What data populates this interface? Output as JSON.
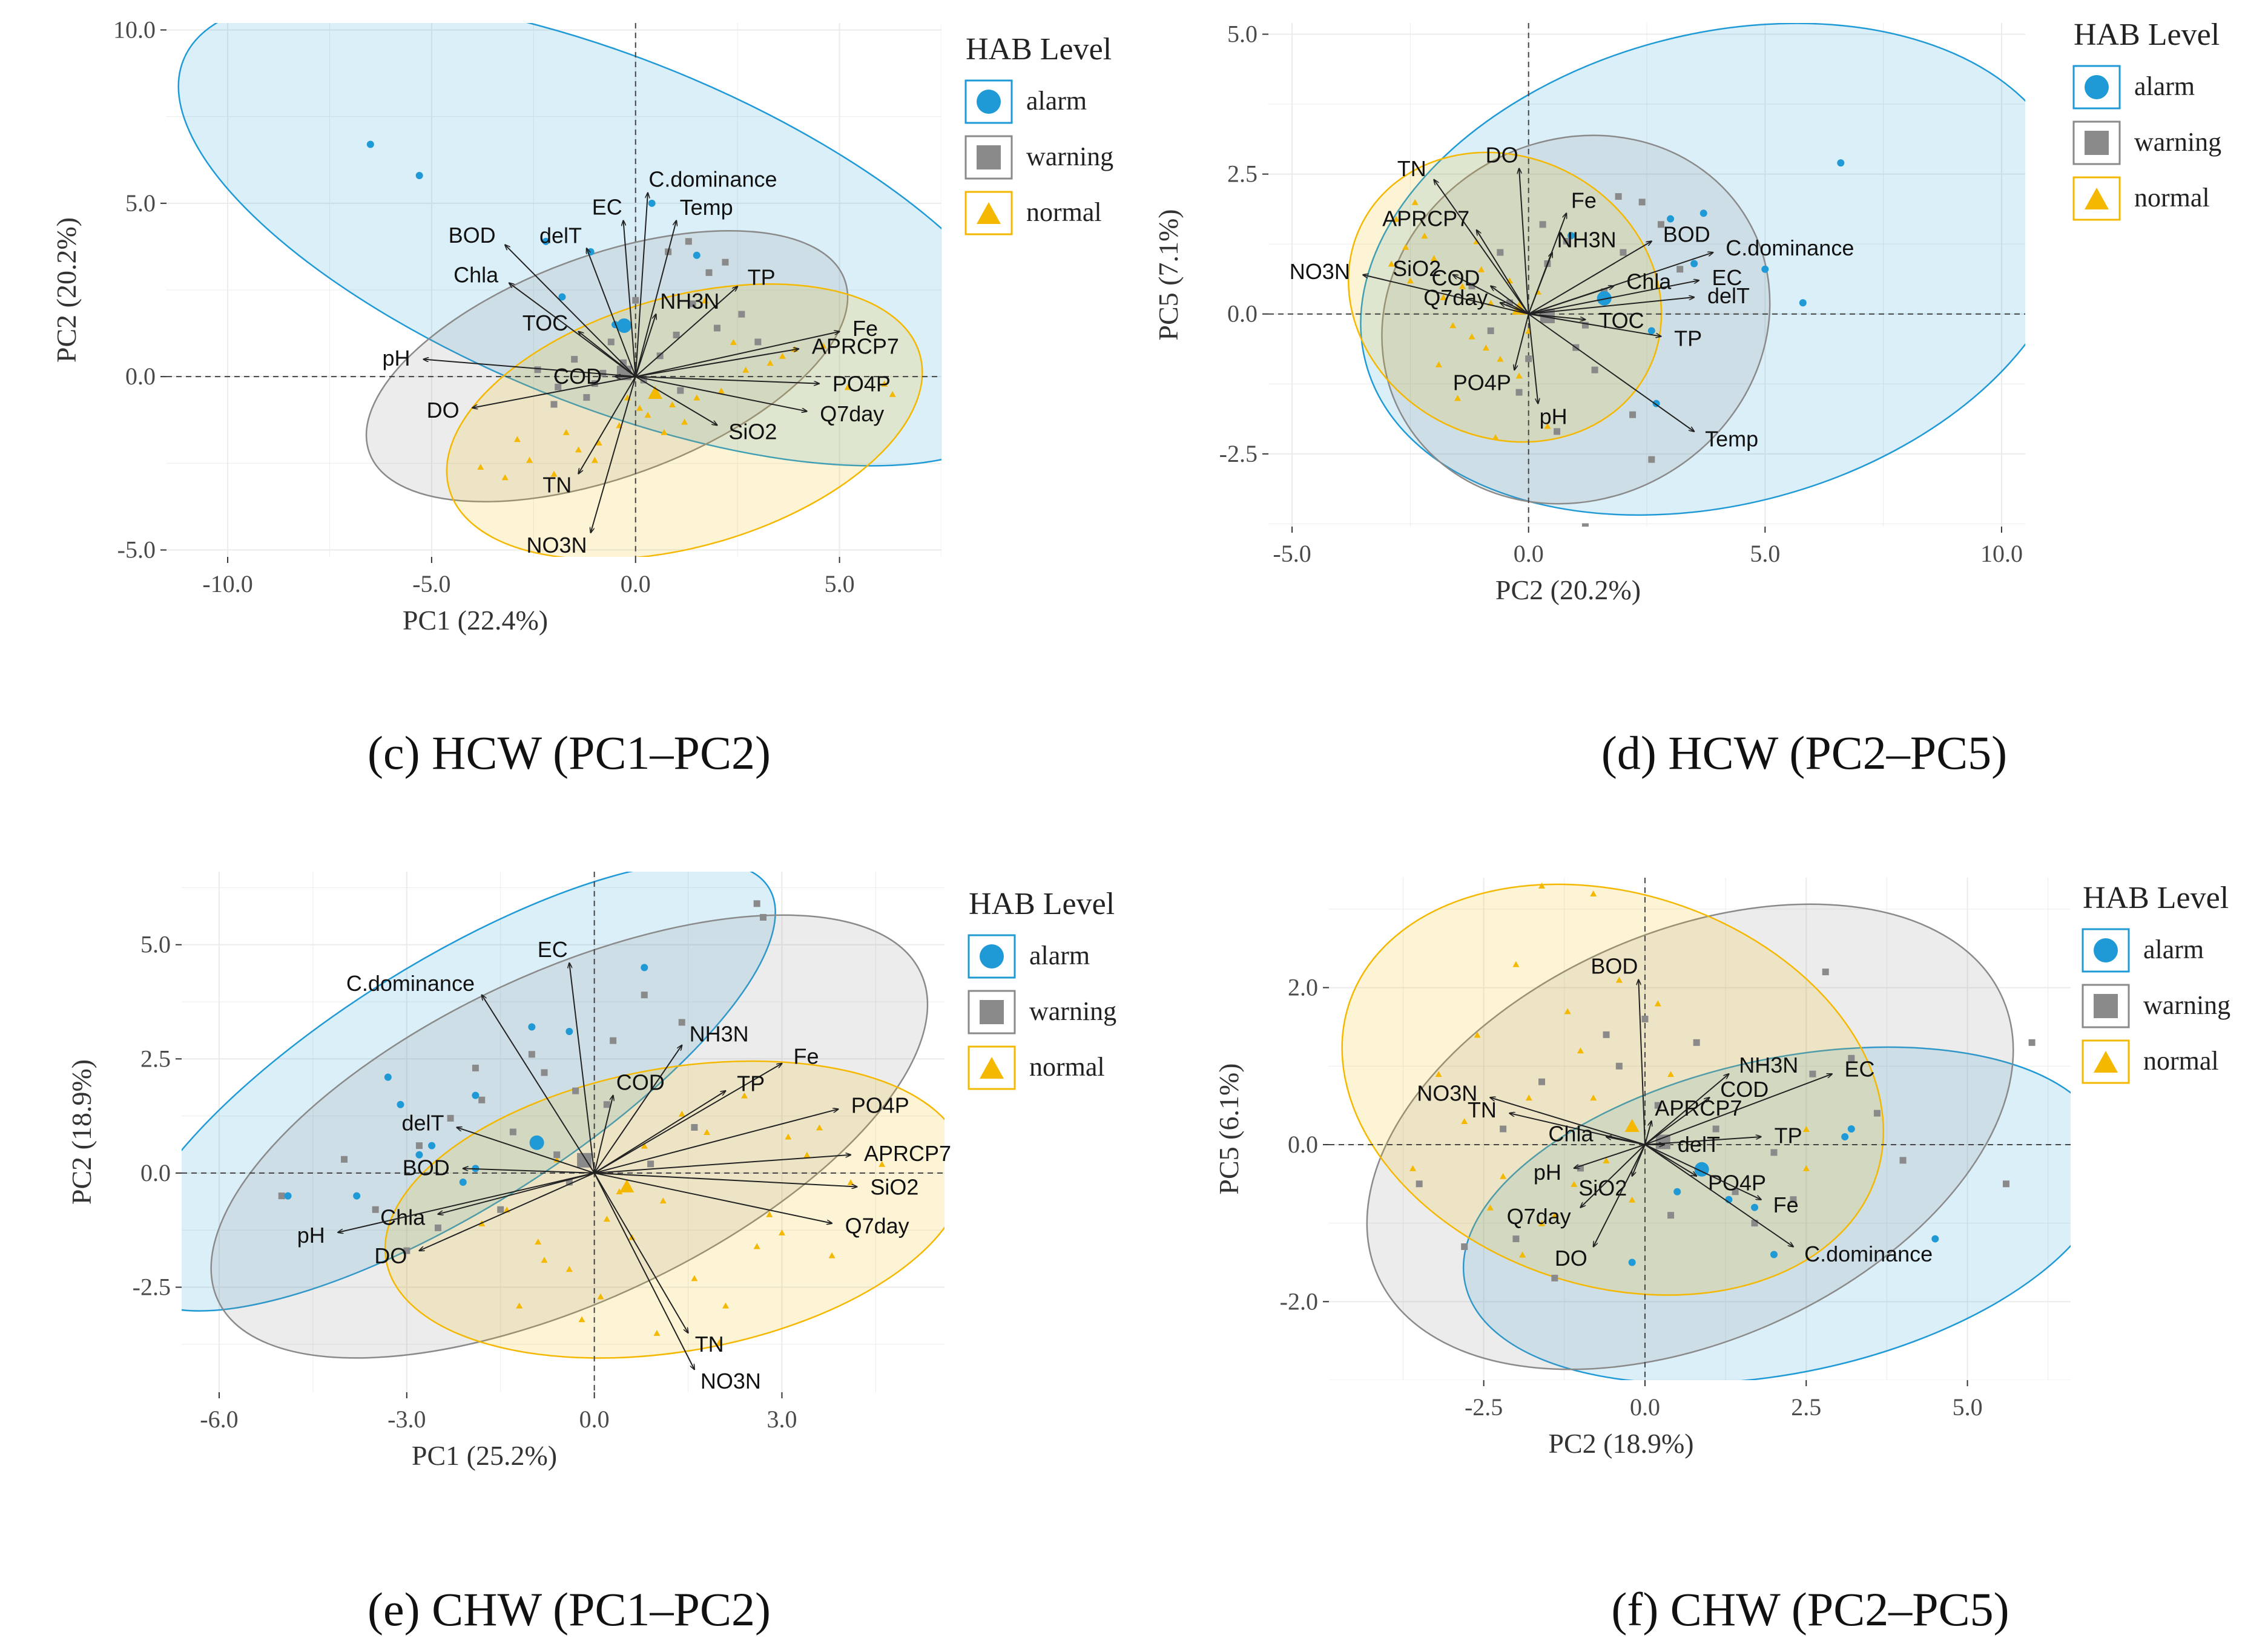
{
  "legend": {
    "title": "HAB Level",
    "items": [
      {
        "label": "alarm",
        "shape": "circle",
        "color": "#1f9ad6"
      },
      {
        "label": "warning",
        "shape": "square",
        "color": "#8a8a8a"
      },
      {
        "label": "normal",
        "shape": "triangle",
        "color": "#f5b800"
      }
    ]
  },
  "colors": {
    "alarm": "#1f9ad6",
    "warning": "#8a8a8a",
    "normal": "#f5b800"
  },
  "chart_data": [
    {
      "type": "scatter",
      "caption": "(c) HCW (PC1–PC2)",
      "xlabel": "PC1 (22.4%)",
      "ylabel": "PC2 (20.2%)",
      "xlim": [
        -11.5,
        7.5
      ],
      "ylim": [
        -5.2,
        10.2
      ],
      "xticks": [
        -10,
        -5,
        0,
        5
      ],
      "yticks": [
        -5,
        0,
        5,
        10
      ],
      "xtick_labels": [
        "-10.0",
        "-5.0",
        "0.0",
        "5.0"
      ],
      "ytick_labels": [
        "-5.0",
        "0.0",
        "5.0",
        "10.0"
      ],
      "ellipses": [
        {
          "group": "alarm",
          "cx": -0.7,
          "cy": 4.2,
          "rx": 11.2,
          "ry": 5.0,
          "angle": -22
        },
        {
          "group": "warning",
          "cx": -0.7,
          "cy": 0.3,
          "rx": 6.2,
          "ry": 3.2,
          "angle": 20
        },
        {
          "group": "normal",
          "cx": 1.2,
          "cy": -1.3,
          "rx": 6.0,
          "ry": 3.6,
          "angle": 16
        }
      ],
      "vectors": [
        {
          "label": "C.dominance",
          "x": 0.3,
          "y": 5.3
        },
        {
          "label": "EC",
          "x": -0.3,
          "y": 4.5
        },
        {
          "label": "Temp",
          "x": 1.0,
          "y": 4.5
        },
        {
          "label": "delT",
          "x": -1.2,
          "y": 3.7
        },
        {
          "label": "BOD",
          "x": -3.2,
          "y": 3.8
        },
        {
          "label": "Chla",
          "x": -3.1,
          "y": 2.7
        },
        {
          "label": "TOC",
          "x": -1.4,
          "y": 1.3
        },
        {
          "label": "TP",
          "x": 2.5,
          "y": 2.6
        },
        {
          "label": "NH3N",
          "x": 0.5,
          "y": 1.8
        },
        {
          "label": "APRCP7",
          "x": 4.0,
          "y": 0.8
        },
        {
          "label": "Fe",
          "x": 5.0,
          "y": 1.3
        },
        {
          "label": "pH",
          "x": -5.2,
          "y": 0.5
        },
        {
          "label": "COD",
          "x": -0.5,
          "y": 0.0
        },
        {
          "label": "PO4P",
          "x": 4.5,
          "y": -0.2
        },
        {
          "label": "SiO2",
          "x": 2.0,
          "y": -1.4
        },
        {
          "label": "Q7day",
          "x": 4.2,
          "y": -1.0
        },
        {
          "label": "DO",
          "x": -4.0,
          "y": -0.9
        },
        {
          "label": "TN",
          "x": -1.4,
          "y": -2.8
        },
        {
          "label": "NO3N",
          "x": -1.1,
          "y": -4.5
        }
      ],
      "alarm": {
        "x": [
          -6.5,
          -5.3,
          -2.2,
          -1.1,
          0.4,
          1.5,
          -1.8,
          -0.5
        ],
        "y": [
          6.7,
          5.8,
          3.9,
          3.6,
          5.0,
          3.5,
          2.3,
          1.5
        ]
      },
      "warning": {
        "x": [
          -2.4,
          -1.9,
          -1.5,
          -1.0,
          -0.6,
          -0.3,
          0.2,
          0.6,
          1.0,
          1.4,
          1.8,
          2.2,
          2.6,
          -2.0,
          -1.2,
          0.0,
          0.8,
          1.3,
          2.0,
          -0.8,
          3.0,
          1.1
        ],
        "y": [
          0.2,
          -0.3,
          0.5,
          -0.2,
          1.0,
          0.4,
          -0.1,
          0.6,
          1.2,
          2.1,
          3.0,
          3.3,
          1.8,
          -0.8,
          -0.6,
          2.2,
          3.6,
          3.9,
          1.4,
          0.1,
          1.0,
          -0.4
        ]
      },
      "normal": {
        "x": [
          -3.8,
          -3.2,
          -2.6,
          -2.0,
          -1.4,
          -0.9,
          -0.4,
          0.3,
          0.9,
          1.5,
          2.1,
          2.7,
          3.3,
          3.9,
          4.6,
          5.2,
          6.1,
          6.3,
          -1.7,
          0.1,
          1.2,
          2.4,
          -2.9,
          -0.2,
          1.7,
          3.6,
          0.7,
          -1.0
        ],
        "y": [
          -2.6,
          -2.9,
          -2.4,
          -2.8,
          -2.1,
          -1.9,
          -1.4,
          -1.1,
          -0.8,
          -0.6,
          -0.4,
          0.2,
          0.4,
          0.8,
          0.9,
          -0.3,
          -0.2,
          -0.5,
          -1.6,
          -0.9,
          -1.3,
          1.0,
          -1.8,
          -0.6,
          2.2,
          0.6,
          -1.6,
          -2.4
        ]
      }
    },
    {
      "type": "scatter",
      "caption": "(d) HCW (PC2–PC5)",
      "xlabel": "PC2 (20.2%)",
      "ylabel": "PC5 (7.1%)",
      "xlim": [
        -5.5,
        10.5
      ],
      "ylim": [
        -3.8,
        5.2
      ],
      "xticks": [
        -5,
        0,
        5,
        10
      ],
      "yticks": [
        -2.5,
        0,
        2.5,
        5
      ],
      "xtick_labels": [
        "-5.0",
        "0.0",
        "5.0",
        "10.0"
      ],
      "ytick_labels": [
        "-2.5",
        "0.0",
        "2.5",
        "5.0"
      ],
      "ellipses": [
        {
          "group": "alarm",
          "cx": 4.0,
          "cy": 0.8,
          "rx": 7.7,
          "ry": 4.2,
          "angle": 15
        },
        {
          "group": "warning",
          "cx": 1.0,
          "cy": -0.1,
          "rx": 4.2,
          "ry": 3.2,
          "angle": 30
        },
        {
          "group": "normal",
          "cx": -0.5,
          "cy": 0.3,
          "rx": 3.4,
          "ry": 2.5,
          "angle": -28
        }
      ],
      "vectors": [
        {
          "label": "TN",
          "x": -2.0,
          "y": 2.4
        },
        {
          "label": "DO",
          "x": -0.2,
          "y": 2.6
        },
        {
          "label": "Fe",
          "x": 0.8,
          "y": 1.8
        },
        {
          "label": "BOD",
          "x": 2.6,
          "y": 1.3
        },
        {
          "label": "C.dominance",
          "x": 3.9,
          "y": 1.1
        },
        {
          "label": "APRCP7",
          "x": -1.1,
          "y": 1.5
        },
        {
          "label": "NH3N",
          "x": 0.5,
          "y": 1.1
        },
        {
          "label": "EC",
          "x": 3.6,
          "y": 0.6
        },
        {
          "label": "NO3N",
          "x": -3.5,
          "y": 0.7
        },
        {
          "label": "SiO2",
          "x": -1.6,
          "y": 0.7
        },
        {
          "label": "COD",
          "x": -0.8,
          "y": 0.5
        },
        {
          "label": "Chla",
          "x": 1.8,
          "y": 0.5
        },
        {
          "label": "Q7day",
          "x": -0.6,
          "y": 0.2
        },
        {
          "label": "delT",
          "x": 3.5,
          "y": 0.3
        },
        {
          "label": "TOC",
          "x": 1.2,
          "y": -0.1
        },
        {
          "label": "TP",
          "x": 2.8,
          "y": -0.4
        },
        {
          "label": "PO4P",
          "x": -0.3,
          "y": -1.0
        },
        {
          "label": "pH",
          "x": 0.2,
          "y": -1.6
        },
        {
          "label": "Temp",
          "x": 3.5,
          "y": -2.1
        }
      ],
      "alarm": {
        "x": [
          6.6,
          5.0,
          5.8,
          3.7,
          3.5,
          3.0,
          0.9,
          2.6,
          2.7
        ],
        "y": [
          2.7,
          0.8,
          0.2,
          1.8,
          0.9,
          1.7,
          1.4,
          -0.3,
          -1.6
        ]
      },
      "warning": {
        "x": [
          -1.2,
          -0.8,
          -0.4,
          0.0,
          0.4,
          0.8,
          1.2,
          1.6,
          2.0,
          2.4,
          2.8,
          3.2,
          -0.2,
          0.6,
          1.4,
          2.2,
          1.9,
          1.2,
          0.3,
          2.6,
          -0.6,
          1.0
        ],
        "y": [
          0.5,
          -0.3,
          0.2,
          -0.8,
          0.9,
          1.3,
          -0.2,
          0.4,
          1.1,
          2.0,
          1.6,
          0.8,
          -1.4,
          -2.1,
          -1.0,
          -1.8,
          2.1,
          -3.8,
          1.6,
          -2.6,
          1.1,
          -0.6
        ]
      },
      "normal": {
        "x": [
          -2.8,
          -2.6,
          -2.4,
          -2.2,
          -2.0,
          -1.8,
          -1.6,
          -1.4,
          -1.2,
          -1.0,
          -0.8,
          -0.6,
          -0.4,
          -0.2,
          0.0,
          0.4,
          -2.5,
          -1.5,
          -0.7,
          0.2,
          -1.1,
          -2.9,
          -0.9,
          -1.9
        ],
        "y": [
          1.7,
          1.2,
          2.0,
          1.4,
          1.0,
          0.3,
          -0.2,
          0.5,
          -0.4,
          0.8,
          0.2,
          -0.8,
          0.6,
          -1.1,
          -0.3,
          -2.0,
          0.6,
          -1.5,
          -2.2,
          0.4,
          1.3,
          0.9,
          -0.6,
          -0.9
        ]
      }
    },
    {
      "type": "scatter",
      "caption": "(e) CHW (PC1–PC2)",
      "xlabel": "PC1 (25.2%)",
      "ylabel": "PC2 (18.9%)",
      "xlim": [
        -6.6,
        5.6
      ],
      "ylim": [
        -4.8,
        6.6
      ],
      "xticks": [
        -6,
        -3,
        0,
        3
      ],
      "yticks": [
        -2.5,
        0,
        2.5,
        5
      ],
      "xtick_labels": [
        "-6.0",
        "-3.0",
        "0.0",
        "3.0"
      ],
      "ytick_labels": [
        "-2.5",
        "0.0",
        "2.5",
        "5.0"
      ],
      "ellipses": [
        {
          "group": "alarm",
          "cx": -2.3,
          "cy": 1.9,
          "rx": 6.0,
          "ry": 2.7,
          "angle": 32
        },
        {
          "group": "warning",
          "cx": -0.4,
          "cy": 0.8,
          "rx": 6.2,
          "ry": 3.6,
          "angle": 25
        },
        {
          "group": "normal",
          "cx": 1.3,
          "cy": -0.8,
          "rx": 4.7,
          "ry": 3.1,
          "angle": 10
        }
      ],
      "vectors": [
        {
          "label": "EC",
          "x": -0.4,
          "y": 4.6
        },
        {
          "label": "C.dominance",
          "x": -1.8,
          "y": 3.9
        },
        {
          "label": "NH3N",
          "x": 1.4,
          "y": 2.8
        },
        {
          "label": "Fe",
          "x": 3.0,
          "y": 2.4
        },
        {
          "label": "COD",
          "x": 0.3,
          "y": 1.7
        },
        {
          "label": "TP",
          "x": 2.1,
          "y": 1.8
        },
        {
          "label": "PO4P",
          "x": 3.9,
          "y": 1.4
        },
        {
          "label": "delT",
          "x": -2.2,
          "y": 1.0
        },
        {
          "label": "APRCP7",
          "x": 4.1,
          "y": 0.4
        },
        {
          "label": "BOD",
          "x": -2.1,
          "y": 0.1
        },
        {
          "label": "SiO2",
          "x": 4.2,
          "y": -0.3
        },
        {
          "label": "Chla",
          "x": -2.5,
          "y": -0.9
        },
        {
          "label": "pH",
          "x": -4.1,
          "y": -1.3
        },
        {
          "label": "DO",
          "x": -2.8,
          "y": -1.7
        },
        {
          "label": "Q7day",
          "x": 3.8,
          "y": -1.1
        },
        {
          "label": "TN",
          "x": 1.5,
          "y": -3.5
        },
        {
          "label": "NO3N",
          "x": 1.6,
          "y": -4.3
        }
      ],
      "alarm": {
        "x": [
          0.8,
          -0.4,
          -1.0,
          -1.9,
          -3.1,
          -3.3,
          -2.6,
          -2.8,
          -1.9,
          -2.1,
          -3.8,
          -4.9
        ],
        "y": [
          4.5,
          3.1,
          3.2,
          1.7,
          1.5,
          2.1,
          0.6,
          0.4,
          0.1,
          -0.2,
          -0.5,
          -0.5
        ]
      },
      "warning": {
        "x": [
          -4.0,
          -3.5,
          -2.8,
          -2.3,
          -1.8,
          -1.3,
          -0.8,
          -0.3,
          0.3,
          0.8,
          1.4,
          -0.6,
          -1.5,
          -2.5,
          0.9,
          2.6,
          2.7,
          0.2,
          -1.0,
          -3.0,
          -5.0,
          -1.9,
          -0.4,
          1.6
        ],
        "y": [
          0.3,
          -0.8,
          0.6,
          1.2,
          1.6,
          0.9,
          2.2,
          1.8,
          2.9,
          3.9,
          3.3,
          0.4,
          -0.8,
          -1.2,
          0.2,
          5.9,
          5.6,
          1.5,
          2.6,
          -1.7,
          -0.5,
          2.3,
          -0.2,
          1.0
        ]
      },
      "normal": {
        "x": [
          -1.4,
          -0.9,
          -0.4,
          0.1,
          0.6,
          1.1,
          1.6,
          2.1,
          2.6,
          3.1,
          3.6,
          4.1,
          4.6,
          -1.2,
          -0.2,
          0.8,
          1.8,
          2.8,
          3.8,
          -0.6,
          0.4,
          1.4,
          2.4,
          3.4,
          -1.8,
          1.0,
          2.0,
          3.0,
          0.2,
          -0.8
        ],
        "y": [
          -0.8,
          -1.5,
          -2.1,
          -2.7,
          -1.4,
          -0.6,
          -2.3,
          -2.9,
          -1.6,
          0.8,
          1.0,
          -0.2,
          0.2,
          -2.9,
          -3.2,
          0.6,
          0.9,
          -0.9,
          -1.8,
          0.3,
          -0.4,
          1.3,
          1.7,
          0.4,
          -1.1,
          -3.5,
          -3.7,
          -1.3,
          -1.0,
          -1.9
        ]
      }
    },
    {
      "type": "scatter",
      "caption": "(f) CHW (PC2–PC5)",
      "xlabel": "PC2 (18.9%)",
      "ylabel": "PC5 (6.1%)",
      "xlim": [
        -4.9,
        6.6
      ],
      "ylim": [
        -3.0,
        3.4
      ],
      "xticks": [
        -2.5,
        0,
        2.5,
        5
      ],
      "yticks": [
        -2,
        0,
        2
      ],
      "xtick_labels": [
        "-2.5",
        "0.0",
        "2.5",
        "5.0"
      ],
      "ytick_labels": [
        "-2.0",
        "0.0",
        "2.0"
      ],
      "ellipses": [
        {
          "group": "alarm",
          "cx": 2.2,
          "cy": -0.9,
          "rx": 5.1,
          "ry": 2.0,
          "angle": 12
        },
        {
          "group": "warning",
          "cx": 0.7,
          "cy": 0.1,
          "rx": 5.3,
          "ry": 2.6,
          "angle": 24
        },
        {
          "group": "normal",
          "cx": -0.5,
          "cy": 0.7,
          "rx": 4.3,
          "ry": 2.5,
          "angle": -18
        }
      ],
      "vectors": [
        {
          "label": "BOD",
          "x": -0.1,
          "y": 2.1
        },
        {
          "label": "NH3N",
          "x": 1.3,
          "y": 0.9
        },
        {
          "label": "COD",
          "x": 1.0,
          "y": 0.6
        },
        {
          "label": "EC",
          "x": 2.9,
          "y": 0.9
        },
        {
          "label": "NO3N",
          "x": -2.4,
          "y": 0.6
        },
        {
          "label": "APRCP7",
          "x": 0.1,
          "y": 0.3
        },
        {
          "label": "TN",
          "x": -2.1,
          "y": 0.4
        },
        {
          "label": "TP",
          "x": 1.8,
          "y": 0.1
        },
        {
          "label": "delT",
          "x": 0.3,
          "y": 0.0
        },
        {
          "label": "Chla",
          "x": -0.6,
          "y": 0.1
        },
        {
          "label": "pH",
          "x": -1.1,
          "y": -0.3
        },
        {
          "label": "SiO2",
          "x": -0.2,
          "y": -0.4
        },
        {
          "label": "PO4P",
          "x": 0.8,
          "y": -0.4
        },
        {
          "label": "Fe",
          "x": 1.8,
          "y": -0.7
        },
        {
          "label": "Q7day",
          "x": -1.0,
          "y": -0.8
        },
        {
          "label": "C.dominance",
          "x": 2.3,
          "y": -1.3
        },
        {
          "label": "DO",
          "x": -0.8,
          "y": -1.3
        }
      ],
      "alarm": {
        "x": [
          1.7,
          3.1,
          3.2,
          4.5,
          2.0,
          1.3,
          -0.2,
          0.5
        ],
        "y": [
          -0.8,
          0.1,
          0.2,
          -1.2,
          -1.4,
          -0.7,
          -1.5,
          -0.6
        ]
      },
      "warning": {
        "x": [
          -3.5,
          -2.8,
          -2.2,
          -1.6,
          -1.0,
          -0.4,
          0.2,
          0.8,
          1.4,
          2.0,
          2.6,
          3.2,
          4.0,
          5.6,
          6.0,
          -1.4,
          -0.6,
          0.4,
          1.1,
          2.3,
          3.6,
          0.0,
          1.7,
          -2.0,
          2.8
        ],
        "y": [
          -0.5,
          -1.3,
          0.2,
          0.8,
          -0.3,
          1.0,
          0.5,
          1.3,
          -0.6,
          -0.1,
          0.9,
          1.1,
          -0.2,
          -0.5,
          1.3,
          -1.7,
          1.4,
          -0.9,
          0.2,
          -0.7,
          0.4,
          1.6,
          -1.0,
          -1.2,
          2.2
        ]
      },
      "normal": {
        "x": [
          -1.6,
          -0.8,
          -2.0,
          -1.2,
          -0.4,
          -2.6,
          -3.2,
          -1.8,
          -1.0,
          0.2,
          -2.2,
          -1.4,
          -0.6,
          -2.8,
          -1.6,
          -0.2,
          -3.6,
          2.5,
          2.5,
          -0.8,
          -1.9,
          -1.1,
          -2.4,
          0.4
        ],
        "y": [
          3.3,
          3.2,
          2.3,
          1.7,
          2.1,
          1.4,
          0.9,
          0.6,
          1.2,
          1.8,
          -0.4,
          -0.9,
          -0.2,
          0.3,
          -1.0,
          -0.7,
          -0.3,
          -0.3,
          0.2,
          0.6,
          -1.4,
          -0.5,
          -0.8,
          0.9
        ]
      }
    }
  ]
}
